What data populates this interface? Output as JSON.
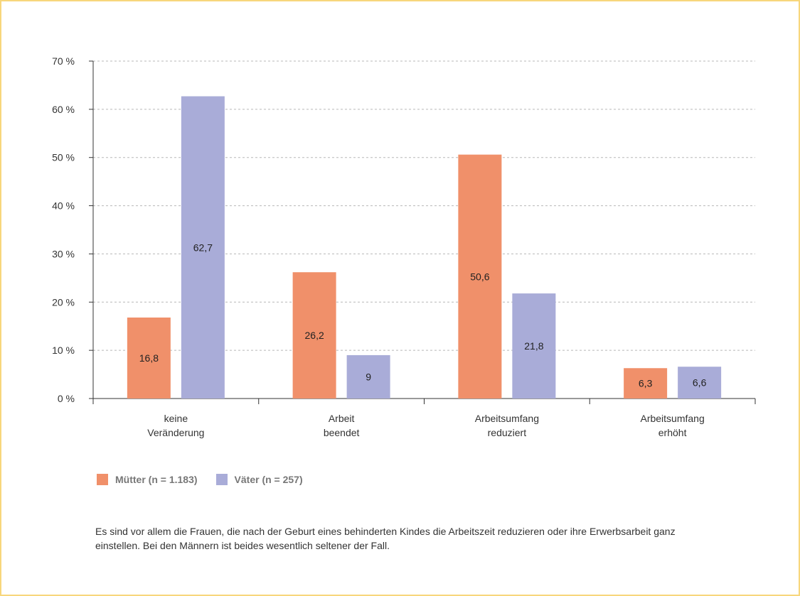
{
  "chart_data": {
    "type": "bar",
    "categories": [
      [
        "keine",
        "Veränderung"
      ],
      [
        "Arbeit",
        "beendet"
      ],
      [
        "Arbeitsumfang",
        "reduziert"
      ],
      [
        "Arbeitsumfang",
        "erhöht"
      ]
    ],
    "series": [
      {
        "name": "Mütter (n = 1.183)",
        "color": "#f0906a",
        "values": [
          16.8,
          26.2,
          50.6,
          6.3
        ],
        "labels": [
          "16,8",
          "26,2",
          "50,6",
          "6,3"
        ]
      },
      {
        "name": "Väter (n = 257)",
        "color": "#a9acd8",
        "values": [
          62.7,
          9,
          21.8,
          6.6
        ],
        "labels": [
          "62,7",
          "9",
          "21,8",
          "6,6"
        ]
      }
    ],
    "ylim": [
      0,
      70
    ],
    "yticks": [
      0,
      10,
      20,
      30,
      40,
      50,
      60,
      70
    ],
    "ytick_labels": [
      "0 %",
      "10 %",
      "20 %",
      "30 %",
      "40 %",
      "50 %",
      "60 %",
      "70 %"
    ],
    "grid": true,
    "legend_position": "bottom-left"
  },
  "caption": "Es sind vor allem die Frauen, die nach der Geburt eines behinderten Kindes die Arbeitszeit reduzieren oder ihre Erwerbsarbeit ganz einstellen. Bei den Männern ist beides wesentlich seltener der Fall."
}
